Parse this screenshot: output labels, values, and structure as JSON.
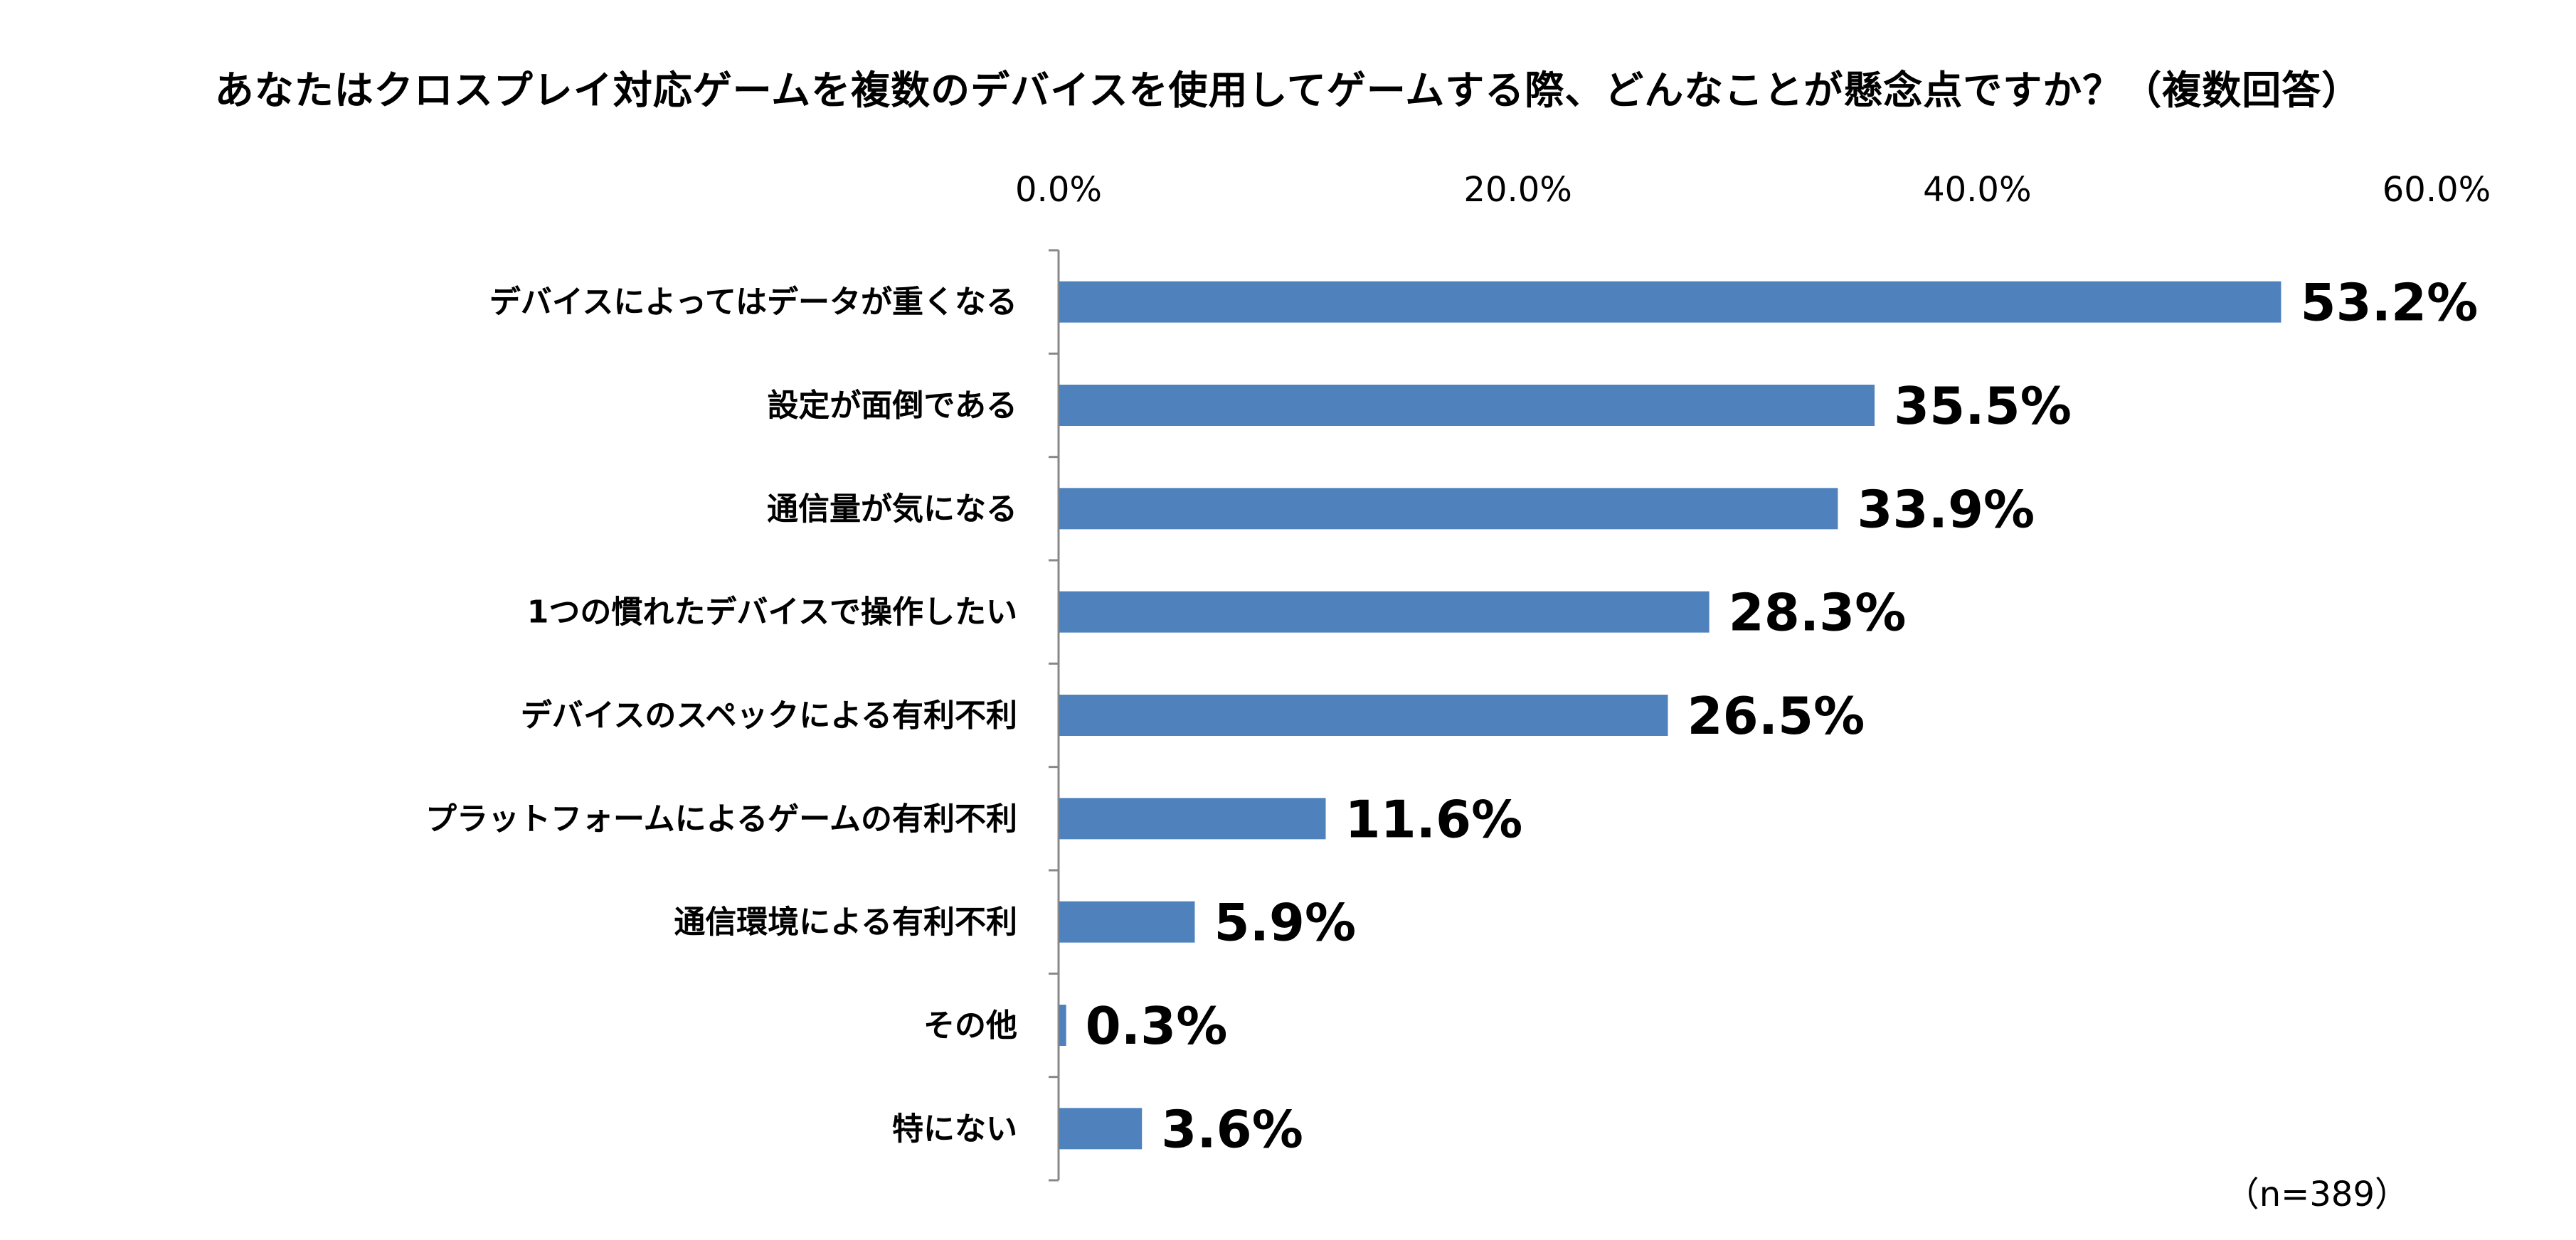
{
  "chart_data": {
    "type": "bar",
    "orientation": "horizontal",
    "title": "あなたはクロスプレイ対応ゲームを複数のデバイスを使用してゲームする際、どんなことが懸念点ですか？（複数回答）",
    "categories": [
      "デバイスによってはデータが重くなる",
      "設定が面倒である",
      "通信量が気になる",
      "1つの慣れたデバイスで操作したい",
      "デバイスのスペックによる有利不利",
      "プラットフォームによるゲームの有利不利",
      "通信環境による有利不利",
      "その他",
      "特にない"
    ],
    "values": [
      53.2,
      35.5,
      33.9,
      28.3,
      26.5,
      11.6,
      5.9,
      0.3,
      3.6
    ],
    "data_labels": [
      "53.2%",
      "35.5%",
      "33.9%",
      "28.3%",
      "26.5%",
      "11.6%",
      "5.9%",
      "0.3%",
      "3.6%"
    ],
    "xlim": [
      0,
      60
    ],
    "x_ticks": [
      0,
      20,
      40,
      60
    ],
    "x_tick_labels": [
      "0.0%",
      "20.0%",
      "40.0%",
      "60.0%"
    ],
    "x_axis_position": "top",
    "grid": false,
    "legend": "none",
    "bar_color": "#4F81BD",
    "annotation": "（n=389）"
  }
}
